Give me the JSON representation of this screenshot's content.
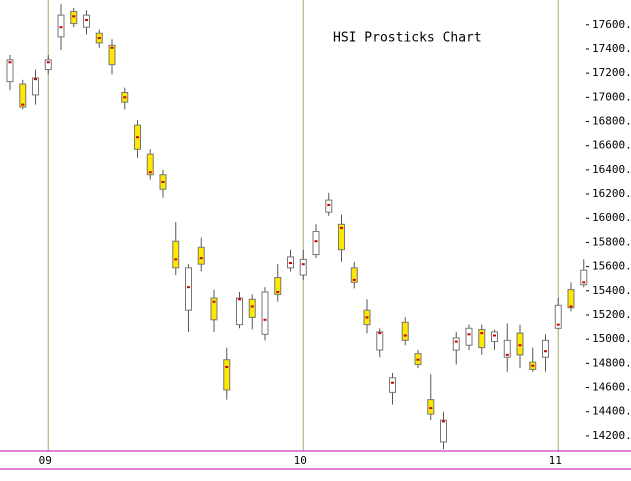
{
  "chart_data": {
    "type": "candlestick",
    "title": "HSI Prosticks Chart",
    "categories": [
      null,
      null,
      null,
      "09",
      null,
      null,
      null,
      null,
      null,
      null,
      null,
      null,
      null,
      null,
      null,
      null,
      null,
      null,
      null,
      null,
      null,
      null,
      null,
      "10",
      null,
      null,
      null,
      null,
      null,
      null,
      null,
      null,
      null,
      null,
      null,
      null,
      null,
      null,
      null,
      null,
      null,
      null,
      null,
      "11",
      null,
      null
    ],
    "open": [
      17130,
      17110,
      17020,
      17230,
      17500,
      17710,
      17580,
      17530,
      17430,
      17040,
      16770,
      16530,
      16360,
      15810,
      15240,
      15760,
      15340,
      14830,
      15120,
      15330,
      15040,
      15510,
      15590,
      15530,
      15700,
      16050,
      15950,
      15590,
      15240,
      14910,
      14560,
      15140,
      14880,
      14500,
      14150,
      14910,
      14950,
      15080,
      14980,
      14850,
      15050,
      14810,
      14850,
      15090,
      15410,
      15450
    ],
    "high": [
      17350,
      17145,
      17230,
      17350,
      17770,
      17740,
      17720,
      17560,
      17480,
      17080,
      16810,
      16570,
      16400,
      15970,
      15620,
      15840,
      15410,
      14930,
      15390,
      15370,
      15430,
      15620,
      15740,
      15740,
      15950,
      16210,
      16030,
      15640,
      15330,
      15090,
      14720,
      15180,
      14910,
      14710,
      14400,
      15060,
      15120,
      15120,
      15080,
      15130,
      15120,
      14930,
      15040,
      15340,
      15470,
      15660
    ],
    "low": [
      17060,
      16900,
      16940,
      17190,
      17390,
      17580,
      17520,
      17410,
      17190,
      16900,
      16500,
      16320,
      16170,
      15530,
      15060,
      15560,
      15060,
      14500,
      15090,
      15080,
      14990,
      15310,
      15560,
      15490,
      15670,
      16020,
      15640,
      15420,
      15050,
      14850,
      14460,
      14950,
      14760,
      14330,
      14090,
      14790,
      14910,
      14870,
      14910,
      14730,
      14760,
      14730,
      14730,
      15080,
      15230,
      15430
    ],
    "close": [
      17310,
      16920,
      17160,
      17310,
      17680,
      17610,
      17680,
      17450,
      17270,
      16960,
      16570,
      16360,
      16240,
      15590,
      15590,
      15620,
      15160,
      14580,
      15340,
      15180,
      15390,
      15370,
      15680,
      15660,
      15890,
      16150,
      15740,
      15470,
      15120,
      15060,
      14680,
      14990,
      14790,
      14380,
      14330,
      15010,
      15090,
      14930,
      15060,
      14990,
      14870,
      14750,
      14990,
      15280,
      15260,
      15570
    ],
    "dots": [
      17290,
      16940,
      17150,
      17290,
      17580,
      17670,
      17640,
      17490,
      17410,
      17000,
      16670,
      16380,
      16300,
      15660,
      15430,
      15670,
      15310,
      14770,
      15330,
      15270,
      15160,
      15390,
      15630,
      15620,
      15810,
      16110,
      15920,
      15490,
      15180,
      15050,
      14640,
      15030,
      14830,
      14430,
      14320,
      14980,
      15040,
      15050,
      15030,
      14870,
      14950,
      14780,
      14900,
      15120,
      15270,
      15470
    ],
    "up_color": "#ffffff",
    "down_color": "#ffe800",
    "dot_color": "#cc0000",
    "grid_color": "#a8a868",
    "axis_color": "#c000c0",
    "ylim": [
      14075,
      17805
    ],
    "yticks": [
      {
        "value": 14200,
        "label": "14200."
      },
      {
        "value": 14400,
        "label": "14400."
      },
      {
        "value": 14600,
        "label": "14600."
      },
      {
        "value": 14800,
        "label": "14800."
      },
      {
        "value": 15000,
        "label": "15000."
      },
      {
        "value": 15200,
        "label": "15200."
      },
      {
        "value": 15400,
        "label": "15400."
      },
      {
        "value": 15600,
        "label": "15600."
      },
      {
        "value": 15800,
        "label": "15800."
      },
      {
        "value": 16000,
        "label": "16000."
      },
      {
        "value": 16200,
        "label": "16200."
      },
      {
        "value": 16400,
        "label": "16400."
      },
      {
        "value": 16600,
        "label": "16600."
      },
      {
        "value": 16800,
        "label": "16800."
      },
      {
        "value": 17000,
        "label": "17000."
      },
      {
        "value": 17200,
        "label": "17200."
      },
      {
        "value": 17400,
        "label": "17400."
      },
      {
        "value": 17600,
        "label": "17600."
      }
    ]
  }
}
